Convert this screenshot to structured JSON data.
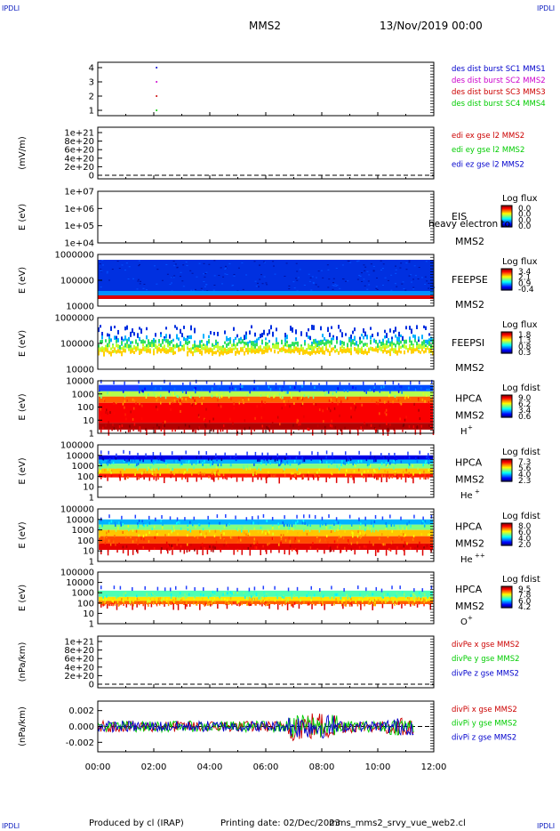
{
  "header": {
    "corner_label": "IPDLI",
    "spacecraft": "MMS2",
    "datetime": "13/Nov/2019 00:00"
  },
  "footer": {
    "produced": "Produced by cl (IRAP)",
    "printed": "Printing date: 02/Dec/2023",
    "script": "mms_mms2_srvy_vue_web2.cl"
  },
  "colors": {
    "blue": "#0000cc",
    "magenta": "#cc00cc",
    "red": "#cc0000",
    "green": "#00cc00"
  },
  "chart_data": [
    {
      "id": "burst",
      "type": "scatter",
      "ylabel": "",
      "yticks": [
        "1",
        "2",
        "3",
        "4"
      ],
      "legend": [
        {
          "text": "des dist burst SC1 MMS1",
          "color": "#0000cc"
        },
        {
          "text": "des dist burst SC2 MMS2",
          "color": "#cc00cc"
        },
        {
          "text": "des dist burst SC3 MMS3",
          "color": "#cc0000"
        },
        {
          "text": "des dist burst SC4 MMS4",
          "color": "#00cc00"
        }
      ]
    },
    {
      "id": "edi",
      "type": "line",
      "ylabel": "(mV/m)",
      "yticks": [
        "0",
        "2e+20",
        "4e+20",
        "6e+20",
        "8e+20",
        "1e+21"
      ],
      "legend": [
        {
          "text": "edi ex gse l2 MMS2",
          "color": "#cc0000"
        },
        {
          "text": "edi ey gse l2 MMS2",
          "color": "#00cc00"
        },
        {
          "text": "edi ez gse l2 MMS2",
          "color": "#0000cc"
        }
      ]
    },
    {
      "id": "eis",
      "type": "heatmap",
      "ylabel": "E (eV)",
      "yticks": [
        "1e+04",
        "1e+05",
        "1e+06",
        "1e+07"
      ],
      "instrument": [
        "EIS",
        "MMS2"
      ],
      "overlay": "EIS",
      "overlay2": "heavy electron to",
      "cbar_title": "Log flux",
      "cbar_ticks": [
        "0.0",
        "0.0",
        "0.0",
        "0.0"
      ]
    },
    {
      "id": "feepse",
      "type": "heatmap",
      "ylabel": "E (eV)",
      "yticks": [
        "10000",
        "100000",
        "1000000"
      ],
      "instrument": [
        "FEEPSE",
        "MMS2"
      ],
      "cbar_title": "Log flux",
      "cbar_ticks": [
        "3.4",
        "2.1",
        "0.9",
        "-0.4"
      ]
    },
    {
      "id": "feepsi",
      "type": "heatmap",
      "ylabel": "E (eV)",
      "yticks": [
        "10000",
        "100000",
        "1000000"
      ],
      "instrument": [
        "FEEPSI",
        "MMS2"
      ],
      "cbar_title": "Log flux",
      "cbar_ticks": [
        "1.8",
        "1.3",
        "0.8",
        "0.3"
      ]
    },
    {
      "id": "hpca_h",
      "type": "heatmap",
      "ylabel": "E (eV)",
      "yticks": [
        "1",
        "10",
        "100",
        "1000",
        "10000"
      ],
      "instrument": [
        "HPCA",
        "MMS2"
      ],
      "species": "H",
      "species_sup": "+",
      "cbar_title": "Log fdist",
      "cbar_ticks": [
        "9.0",
        "6.2",
        "3.4",
        "0.6"
      ]
    },
    {
      "id": "hpca_he",
      "type": "heatmap",
      "ylabel": "E (eV)",
      "yticks": [
        "1",
        "10",
        "100",
        "1000",
        "10000",
        "100000"
      ],
      "instrument": [
        "HPCA",
        "MMS2"
      ],
      "species": "He",
      "species_sup": "+",
      "cbar_title": "Log fdist",
      "cbar_ticks": [
        "7.3",
        "5.6",
        "4.0",
        "2.3"
      ]
    },
    {
      "id": "hpca_he2",
      "type": "heatmap",
      "ylabel": "E (eV)",
      "yticks": [
        "1",
        "10",
        "100",
        "1000",
        "10000",
        "100000"
      ],
      "instrument": [
        "HPCA",
        "MMS2"
      ],
      "species": "He",
      "species_sup": "++",
      "cbar_title": "Log fdist",
      "cbar_ticks": [
        "8.0",
        "6.0",
        "4.0",
        "2.0"
      ]
    },
    {
      "id": "hpca_o",
      "type": "heatmap",
      "ylabel": "E (eV)",
      "yticks": [
        "1",
        "10",
        "100",
        "1000",
        "10000",
        "100000"
      ],
      "instrument": [
        "HPCA",
        "MMS2"
      ],
      "species": "O",
      "species_sup": "+",
      "cbar_title": "Log fdist",
      "cbar_ticks": [
        "9.5",
        "7.8",
        "6.0",
        "4.2"
      ]
    },
    {
      "id": "divpe",
      "type": "line",
      "ylabel": "(nPa/km)",
      "yticks": [
        "0",
        "2e+20",
        "4e+20",
        "6e+20",
        "8e+20",
        "1e+21"
      ],
      "legend": [
        {
          "text": "divPe x gse MMS2",
          "color": "#cc0000"
        },
        {
          "text": "divPe y gse MMS2",
          "color": "#00cc00"
        },
        {
          "text": "divPe z gse MMS2",
          "color": "#0000cc"
        }
      ]
    },
    {
      "id": "divpi",
      "type": "line",
      "ylabel": "(nPa/km)",
      "yticks": [
        "-0.002",
        "0.000",
        "0.002"
      ],
      "ylim": [
        -0.0032,
        0.0032
      ],
      "legend": [
        {
          "text": "divPi x gse MMS2",
          "color": "#cc0000"
        },
        {
          "text": "divPi y gse MMS2",
          "color": "#00cc00"
        },
        {
          "text": "divPi z gse MMS2",
          "color": "#0000cc"
        }
      ]
    }
  ],
  "xaxis": {
    "ticks": [
      "00:00",
      "02:00",
      "04:00",
      "06:00",
      "08:00",
      "10:00",
      "12:00"
    ],
    "range_hours": [
      0,
      12
    ]
  }
}
